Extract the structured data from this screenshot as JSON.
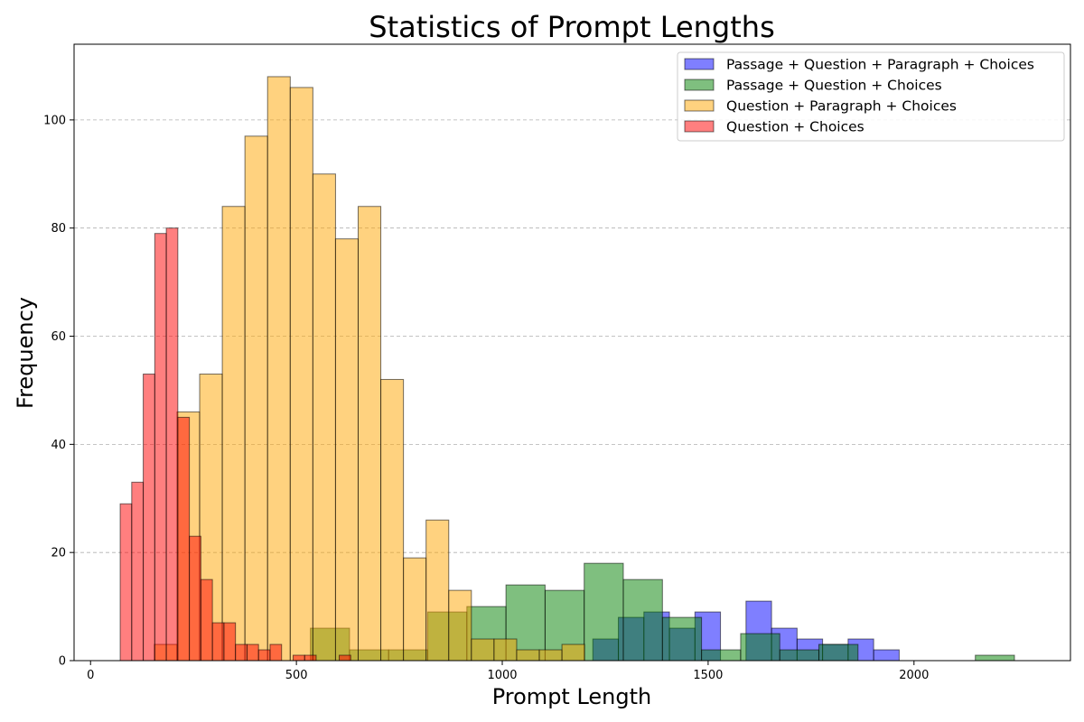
{
  "chart_data": {
    "type": "bar",
    "title": "Statistics of Prompt Lengths",
    "xlabel": "Prompt Length",
    "ylabel": "Frequency",
    "xlim": [
      -40,
      2380
    ],
    "ylim": [
      0,
      114
    ],
    "xticks": [
      0,
      500,
      1000,
      1500,
      2000
    ],
    "yticks": [
      0,
      20,
      40,
      60,
      80,
      100
    ],
    "grid": "y-dashed",
    "legend_position": "top-right",
    "series": [
      {
        "name": "Passage + Question + Paragraph + Choices",
        "color": "#0000ff",
        "opacity": 0.5,
        "bin_width": 62,
        "bins": [
          [
            1220,
            4
          ],
          [
            1282,
            8
          ],
          [
            1344,
            9
          ],
          [
            1406,
            6
          ],
          [
            1468,
            9
          ],
          [
            1592,
            11
          ],
          [
            1654,
            6
          ],
          [
            1716,
            4
          ],
          [
            1778,
            3
          ],
          [
            1840,
            4
          ],
          [
            1902,
            2
          ]
        ]
      },
      {
        "name": "Passage + Question + Choices",
        "color": "#008000",
        "opacity": 0.5,
        "bin_width": 95,
        "bins": [
          [
            534,
            6
          ],
          [
            629,
            2
          ],
          [
            724,
            2
          ],
          [
            819,
            9
          ],
          [
            914,
            10
          ],
          [
            1009,
            14
          ],
          [
            1104,
            13
          ],
          [
            1199,
            18
          ],
          [
            1294,
            15
          ],
          [
            1389,
            8
          ],
          [
            1484,
            2
          ],
          [
            1579,
            5
          ],
          [
            1674,
            2
          ],
          [
            1769,
            3
          ],
          [
            2149,
            1
          ]
        ]
      },
      {
        "name": "Question + Paragraph + Choices",
        "color": "#ffa500",
        "opacity": 0.5,
        "bin_width": 55,
        "bins": [
          [
            155,
            3
          ],
          [
            210,
            46
          ],
          [
            265,
            53
          ],
          [
            320,
            84
          ],
          [
            375,
            97
          ],
          [
            430,
            108
          ],
          [
            485,
            106
          ],
          [
            540,
            90
          ],
          [
            595,
            78
          ],
          [
            650,
            84
          ],
          [
            705,
            52
          ],
          [
            760,
            19
          ],
          [
            815,
            26
          ],
          [
            870,
            13
          ],
          [
            925,
            4
          ],
          [
            980,
            4
          ],
          [
            1035,
            2
          ],
          [
            1090,
            2
          ],
          [
            1145,
            3
          ]
        ]
      },
      {
        "name": "Question + Choices",
        "color": "#ff0000",
        "opacity": 0.5,
        "bin_width": 28,
        "bins": [
          [
            72,
            29
          ],
          [
            100,
            33
          ],
          [
            128,
            53
          ],
          [
            156,
            79
          ],
          [
            184,
            80
          ],
          [
            212,
            45
          ],
          [
            240,
            23
          ],
          [
            268,
            15
          ],
          [
            296,
            7
          ],
          [
            324,
            7
          ],
          [
            352,
            3
          ],
          [
            380,
            3
          ],
          [
            408,
            2
          ],
          [
            436,
            3
          ],
          [
            464,
            0
          ],
          [
            492,
            1
          ],
          [
            520,
            1
          ],
          [
            548,
            0
          ],
          [
            576,
            0
          ],
          [
            604,
            1
          ]
        ]
      }
    ]
  }
}
